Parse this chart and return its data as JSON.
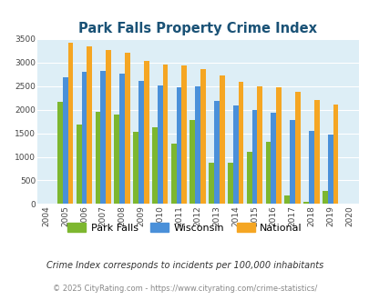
{
  "title": "Park Falls Property Crime Index",
  "years": [
    2004,
    2005,
    2006,
    2007,
    2008,
    2009,
    2010,
    2011,
    2012,
    2013,
    2014,
    2015,
    2016,
    2017,
    2018,
    2019,
    2020
  ],
  "park_falls": [
    null,
    2175,
    1680,
    1950,
    1900,
    1530,
    1625,
    1275,
    1790,
    880,
    880,
    1100,
    1310,
    175,
    50,
    285,
    null
  ],
  "wisconsin": [
    null,
    2680,
    2810,
    2830,
    2760,
    2610,
    2510,
    2470,
    2490,
    2190,
    2090,
    1990,
    1940,
    1790,
    1555,
    1470,
    null
  ],
  "national": [
    null,
    3415,
    3350,
    3270,
    3210,
    3040,
    2960,
    2930,
    2870,
    2730,
    2600,
    2490,
    2470,
    2380,
    2200,
    2110,
    null
  ],
  "park_falls_color": "#7db72f",
  "wisconsin_color": "#4a90d9",
  "national_color": "#f5a623",
  "bg_color": "#ddeef6",
  "title_color": "#1a5276",
  "ylabel_max": 3500,
  "yticks": [
    0,
    500,
    1000,
    1500,
    2000,
    2500,
    3000,
    3500
  ],
  "legend_labels": [
    "Park Falls",
    "Wisconsin",
    "National"
  ],
  "footnote1": "Crime Index corresponds to incidents per 100,000 inhabitants",
  "footnote2": "© 2025 CityRating.com - https://www.cityrating.com/crime-statistics/",
  "footnote1_color": "#333333",
  "footnote2_color": "#888888"
}
